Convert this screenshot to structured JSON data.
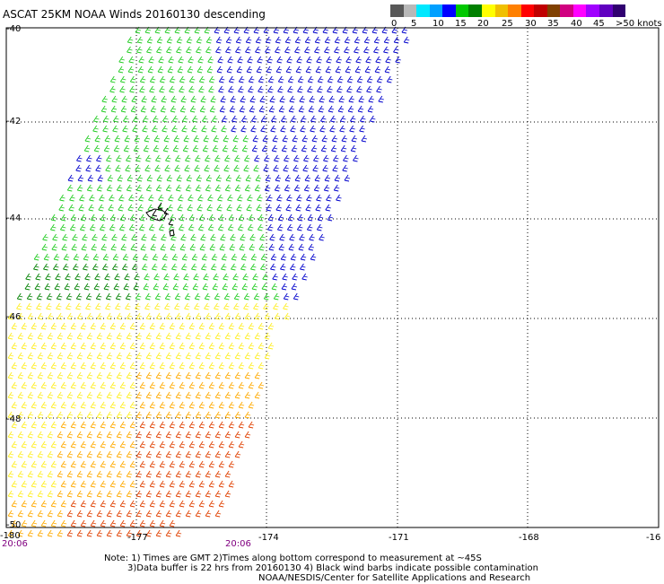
{
  "header": {
    "title": "ASCAT 25KM NOAA Winds 20160130 descending"
  },
  "colorbar": {
    "colors": [
      "#585858",
      "#b8b8b8",
      "#00e8ff",
      "#00a0ff",
      "#0000ff",
      "#00c800",
      "#008000",
      "#ffff00",
      "#f0c000",
      "#ff8000",
      "#ff0000",
      "#c00000",
      "#804000",
      "#d00080",
      "#ff00ff",
      "#a000ff",
      "#6000c0",
      "#300070"
    ],
    "labels": [
      "0",
      "5",
      "10",
      "15",
      "20",
      "25",
      "30",
      "35",
      "40",
      "45",
      ">50 knots"
    ]
  },
  "map": {
    "lon_labels": [
      "-180",
      "-177",
      "-174",
      "-171",
      "-168",
      "-16"
    ],
    "lat_labels": [
      "-40",
      "-42",
      "-44",
      "-46",
      "-48",
      "-50"
    ],
    "time_labels": [
      "20:06",
      "20:06"
    ],
    "wind_colors": {
      "blue": "#0000cc",
      "green": "#22cc22",
      "dark_green": "#008000",
      "yellow": "#ffee22",
      "orange": "#ffaa00",
      "red_orange": "#e04000",
      "contamination": "#000000"
    }
  },
  "notes": {
    "line1": "Note: 1) Times are GMT 2)Times along bottom correspond to measurement at ~45S",
    "line2": "3)Data buffer is 22 hrs from 20160130 4) Black wind barbs indicate possible contamination",
    "line3": "NOAA/NESDIS/Center for Satellite Applications and Research"
  }
}
